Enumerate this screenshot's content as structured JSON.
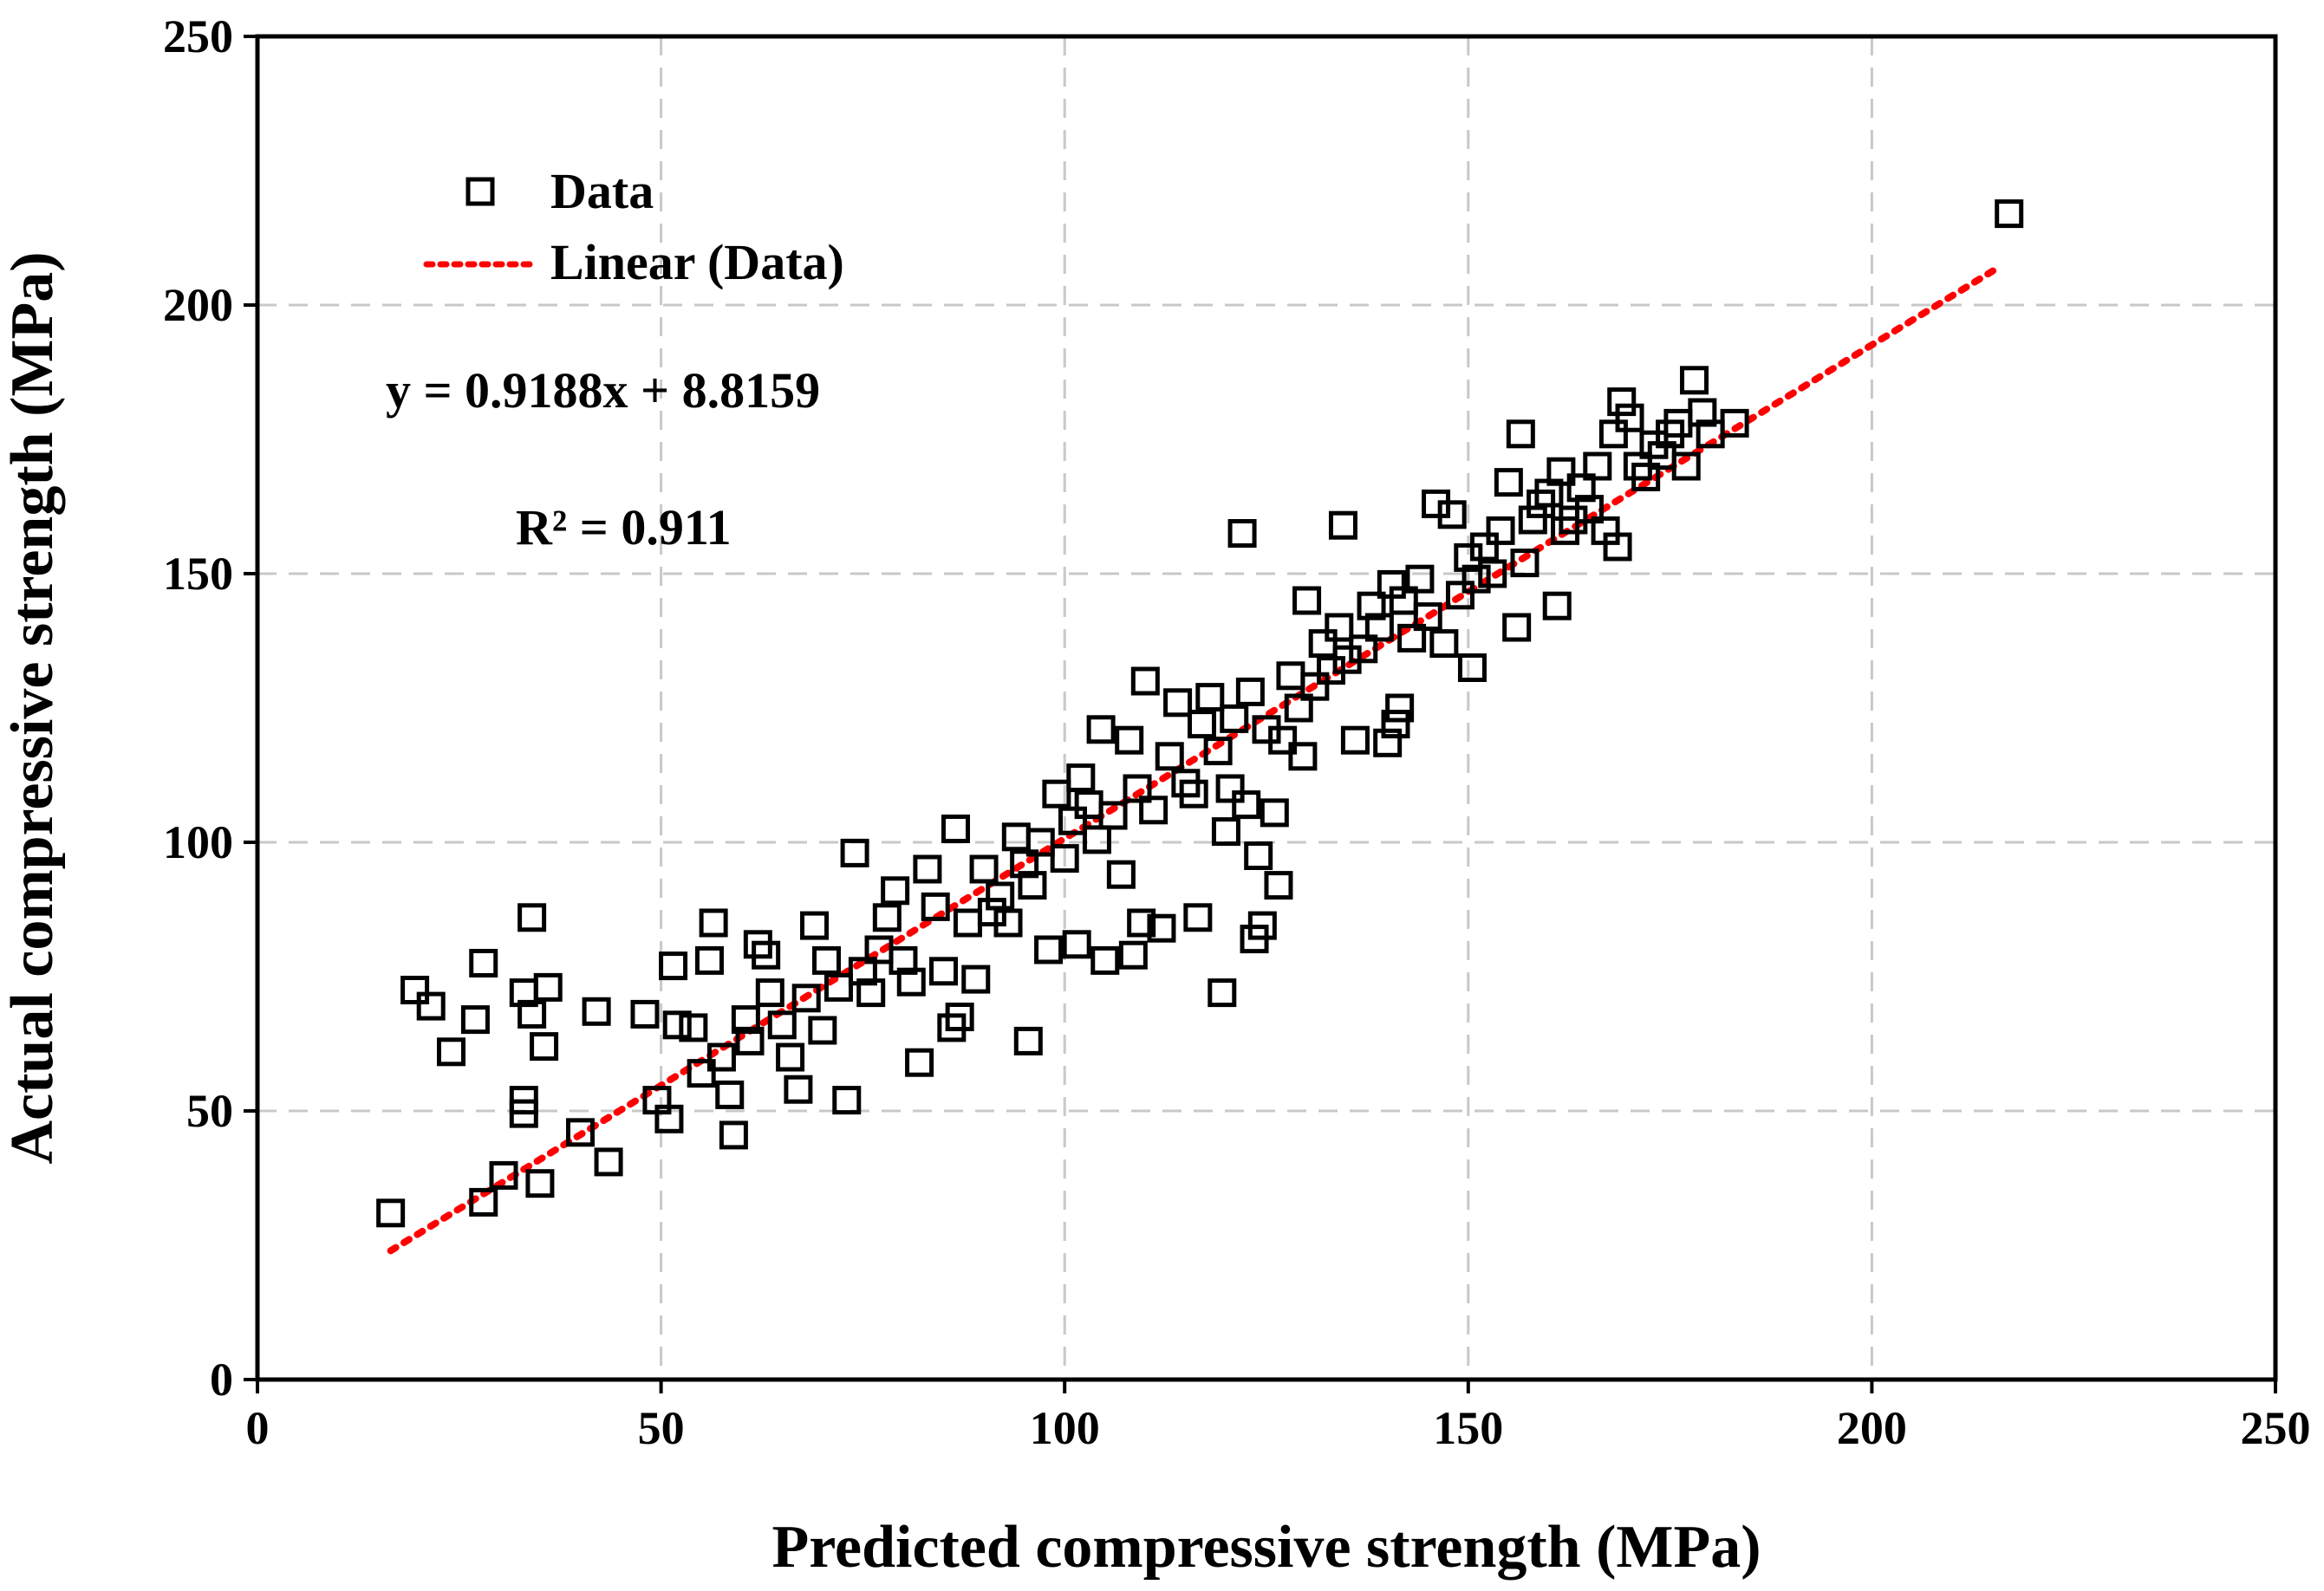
{
  "chart_data": {
    "type": "scatter",
    "title": "",
    "xlabel": "Predicted compressive strength (MPa)",
    "ylabel": "Actual compressive strength (MPa)",
    "xlim": [
      0,
      250
    ],
    "ylim": [
      0,
      250
    ],
    "xticks": [
      "0",
      "50",
      "100",
      "150",
      "200",
      "250"
    ],
    "yticks": [
      "0",
      "50",
      "100",
      "150",
      "200",
      "250"
    ],
    "grid": true,
    "legend_position": "top-left",
    "colors": {
      "markers": "#000000",
      "trendline": "#ff0000",
      "grid": "#c8c8c8"
    },
    "series": [
      {
        "name": "Data",
        "marker": "open-square",
        "points": [
          [
            16.5,
            31
          ],
          [
            19.5,
            72.5
          ],
          [
            21.5,
            69.5
          ],
          [
            24,
            61
          ],
          [
            27,
            67
          ],
          [
            28,
            77.5
          ],
          [
            28,
            33
          ],
          [
            30.5,
            38
          ],
          [
            33,
            52
          ],
          [
            33,
            72
          ],
          [
            33,
            49.5
          ],
          [
            34,
            86
          ],
          [
            34,
            68
          ],
          [
            35,
            36.5
          ],
          [
            35.5,
            62
          ],
          [
            36,
            73
          ],
          [
            40,
            46
          ],
          [
            42,
            68.5
          ],
          [
            43.5,
            40.5
          ],
          [
            48,
            68
          ],
          [
            49.5,
            52
          ],
          [
            51,
            48.5
          ],
          [
            51.5,
            77
          ],
          [
            52,
            66
          ],
          [
            54,
            65.5
          ],
          [
            55,
            57
          ],
          [
            56,
            78
          ],
          [
            56.5,
            85
          ],
          [
            57.5,
            60
          ],
          [
            58.5,
            53
          ],
          [
            59,
            45.5
          ],
          [
            60.5,
            67
          ],
          [
            61,
            63
          ],
          [
            62,
            81
          ],
          [
            63,
            79
          ],
          [
            63.5,
            72
          ],
          [
            65,
            66
          ],
          [
            66,
            60
          ],
          [
            67,
            54
          ],
          [
            68,
            71
          ],
          [
            69,
            84.5
          ],
          [
            70,
            65
          ],
          [
            70.5,
            78
          ],
          [
            72,
            73
          ],
          [
            73,
            52
          ],
          [
            74,
            98
          ],
          [
            75,
            76
          ],
          [
            76,
            72
          ],
          [
            77,
            80
          ],
          [
            78,
            86
          ],
          [
            79,
            91
          ],
          [
            80,
            78
          ],
          [
            81,
            74
          ],
          [
            82,
            59
          ],
          [
            83,
            95
          ],
          [
            84,
            88
          ],
          [
            85,
            76
          ],
          [
            86,
            65.5
          ],
          [
            86.5,
            102.5
          ],
          [
            87,
            67.5
          ],
          [
            88,
            85
          ],
          [
            89,
            74.5
          ],
          [
            90,
            95
          ],
          [
            91,
            87
          ],
          [
            92,
            90
          ],
          [
            93,
            85
          ],
          [
            94,
            101
          ],
          [
            95,
            96
          ],
          [
            95.5,
            63
          ],
          [
            96,
            92
          ],
          [
            97,
            100
          ],
          [
            98,
            80
          ],
          [
            99,
            109
          ],
          [
            100,
            97
          ],
          [
            101,
            104
          ],
          [
            101.5,
            81
          ],
          [
            102,
            112
          ],
          [
            103,
            107
          ],
          [
            104,
            100.5
          ],
          [
            104.5,
            121
          ],
          [
            105,
            78
          ],
          [
            106,
            105
          ],
          [
            107,
            94
          ],
          [
            108,
            119
          ],
          [
            108.5,
            79
          ],
          [
            109,
            110
          ],
          [
            109.5,
            85
          ],
          [
            110,
            130
          ],
          [
            111,
            106
          ],
          [
            112,
            84
          ],
          [
            113,
            116
          ],
          [
            114,
            126
          ],
          [
            115,
            111
          ],
          [
            116,
            109
          ],
          [
            116.5,
            86
          ],
          [
            117,
            122
          ],
          [
            118,
            127
          ],
          [
            119,
            117
          ],
          [
            119.5,
            72
          ],
          [
            120,
            102
          ],
          [
            120.5,
            110
          ],
          [
            121,
            123
          ],
          [
            122,
            157.5
          ],
          [
            122.5,
            107
          ],
          [
            123,
            128
          ],
          [
            123.5,
            82
          ],
          [
            124,
            97.5
          ],
          [
            124.5,
            84.5
          ],
          [
            125,
            121
          ],
          [
            126,
            105.5
          ],
          [
            126.5,
            92
          ],
          [
            127,
            119
          ],
          [
            128,
            131
          ],
          [
            129,
            125
          ],
          [
            129.5,
            116
          ],
          [
            130,
            145
          ],
          [
            131,
            129
          ],
          [
            132,
            137
          ],
          [
            133,
            132
          ],
          [
            134,
            140
          ],
          [
            134.5,
            159
          ],
          [
            135,
            134
          ],
          [
            136,
            119
          ],
          [
            137,
            136
          ],
          [
            138,
            144
          ],
          [
            139,
            140
          ],
          [
            140,
            118.5
          ],
          [
            140.5,
            148
          ],
          [
            141,
            122
          ],
          [
            141.5,
            125
          ],
          [
            142,
            145
          ],
          [
            143,
            138
          ],
          [
            144,
            149
          ],
          [
            145,
            142
          ],
          [
            146,
            163
          ],
          [
            147,
            137
          ],
          [
            148,
            161
          ],
          [
            149,
            146
          ],
          [
            150,
            153
          ],
          [
            150.5,
            132.5
          ],
          [
            151,
            149
          ],
          [
            152,
            155
          ],
          [
            153,
            150
          ],
          [
            154,
            158
          ],
          [
            155,
            167
          ],
          [
            156,
            140
          ],
          [
            156.5,
            176
          ],
          [
            157,
            152
          ],
          [
            158,
            160
          ],
          [
            159,
            163
          ],
          [
            160,
            165
          ],
          [
            161,
            144
          ],
          [
            161.5,
            169
          ],
          [
            162,
            158
          ],
          [
            163,
            160
          ],
          [
            164,
            166
          ],
          [
            165,
            162
          ],
          [
            166,
            170
          ],
          [
            167,
            158
          ],
          [
            168,
            176
          ],
          [
            168.5,
            155
          ],
          [
            169,
            182
          ],
          [
            170,
            179
          ],
          [
            171,
            170
          ],
          [
            172,
            168
          ],
          [
            173,
            174
          ],
          [
            174,
            172
          ],
          [
            175,
            176
          ],
          [
            176,
            178
          ],
          [
            177,
            170
          ],
          [
            178,
            186
          ],
          [
            179,
            180
          ],
          [
            180,
            176
          ],
          [
            183,
            178
          ],
          [
            217,
            217
          ]
        ]
      }
    ],
    "trendline": {
      "name": "Linear (Data)",
      "style": "dotted",
      "slope": 0.9188,
      "intercept": 8.8159,
      "x_range": [
        16.5,
        215
      ]
    },
    "annotations": {
      "equation": "y = 0.9188x + 8.8159",
      "r_squared": "R² = 0.911"
    }
  }
}
